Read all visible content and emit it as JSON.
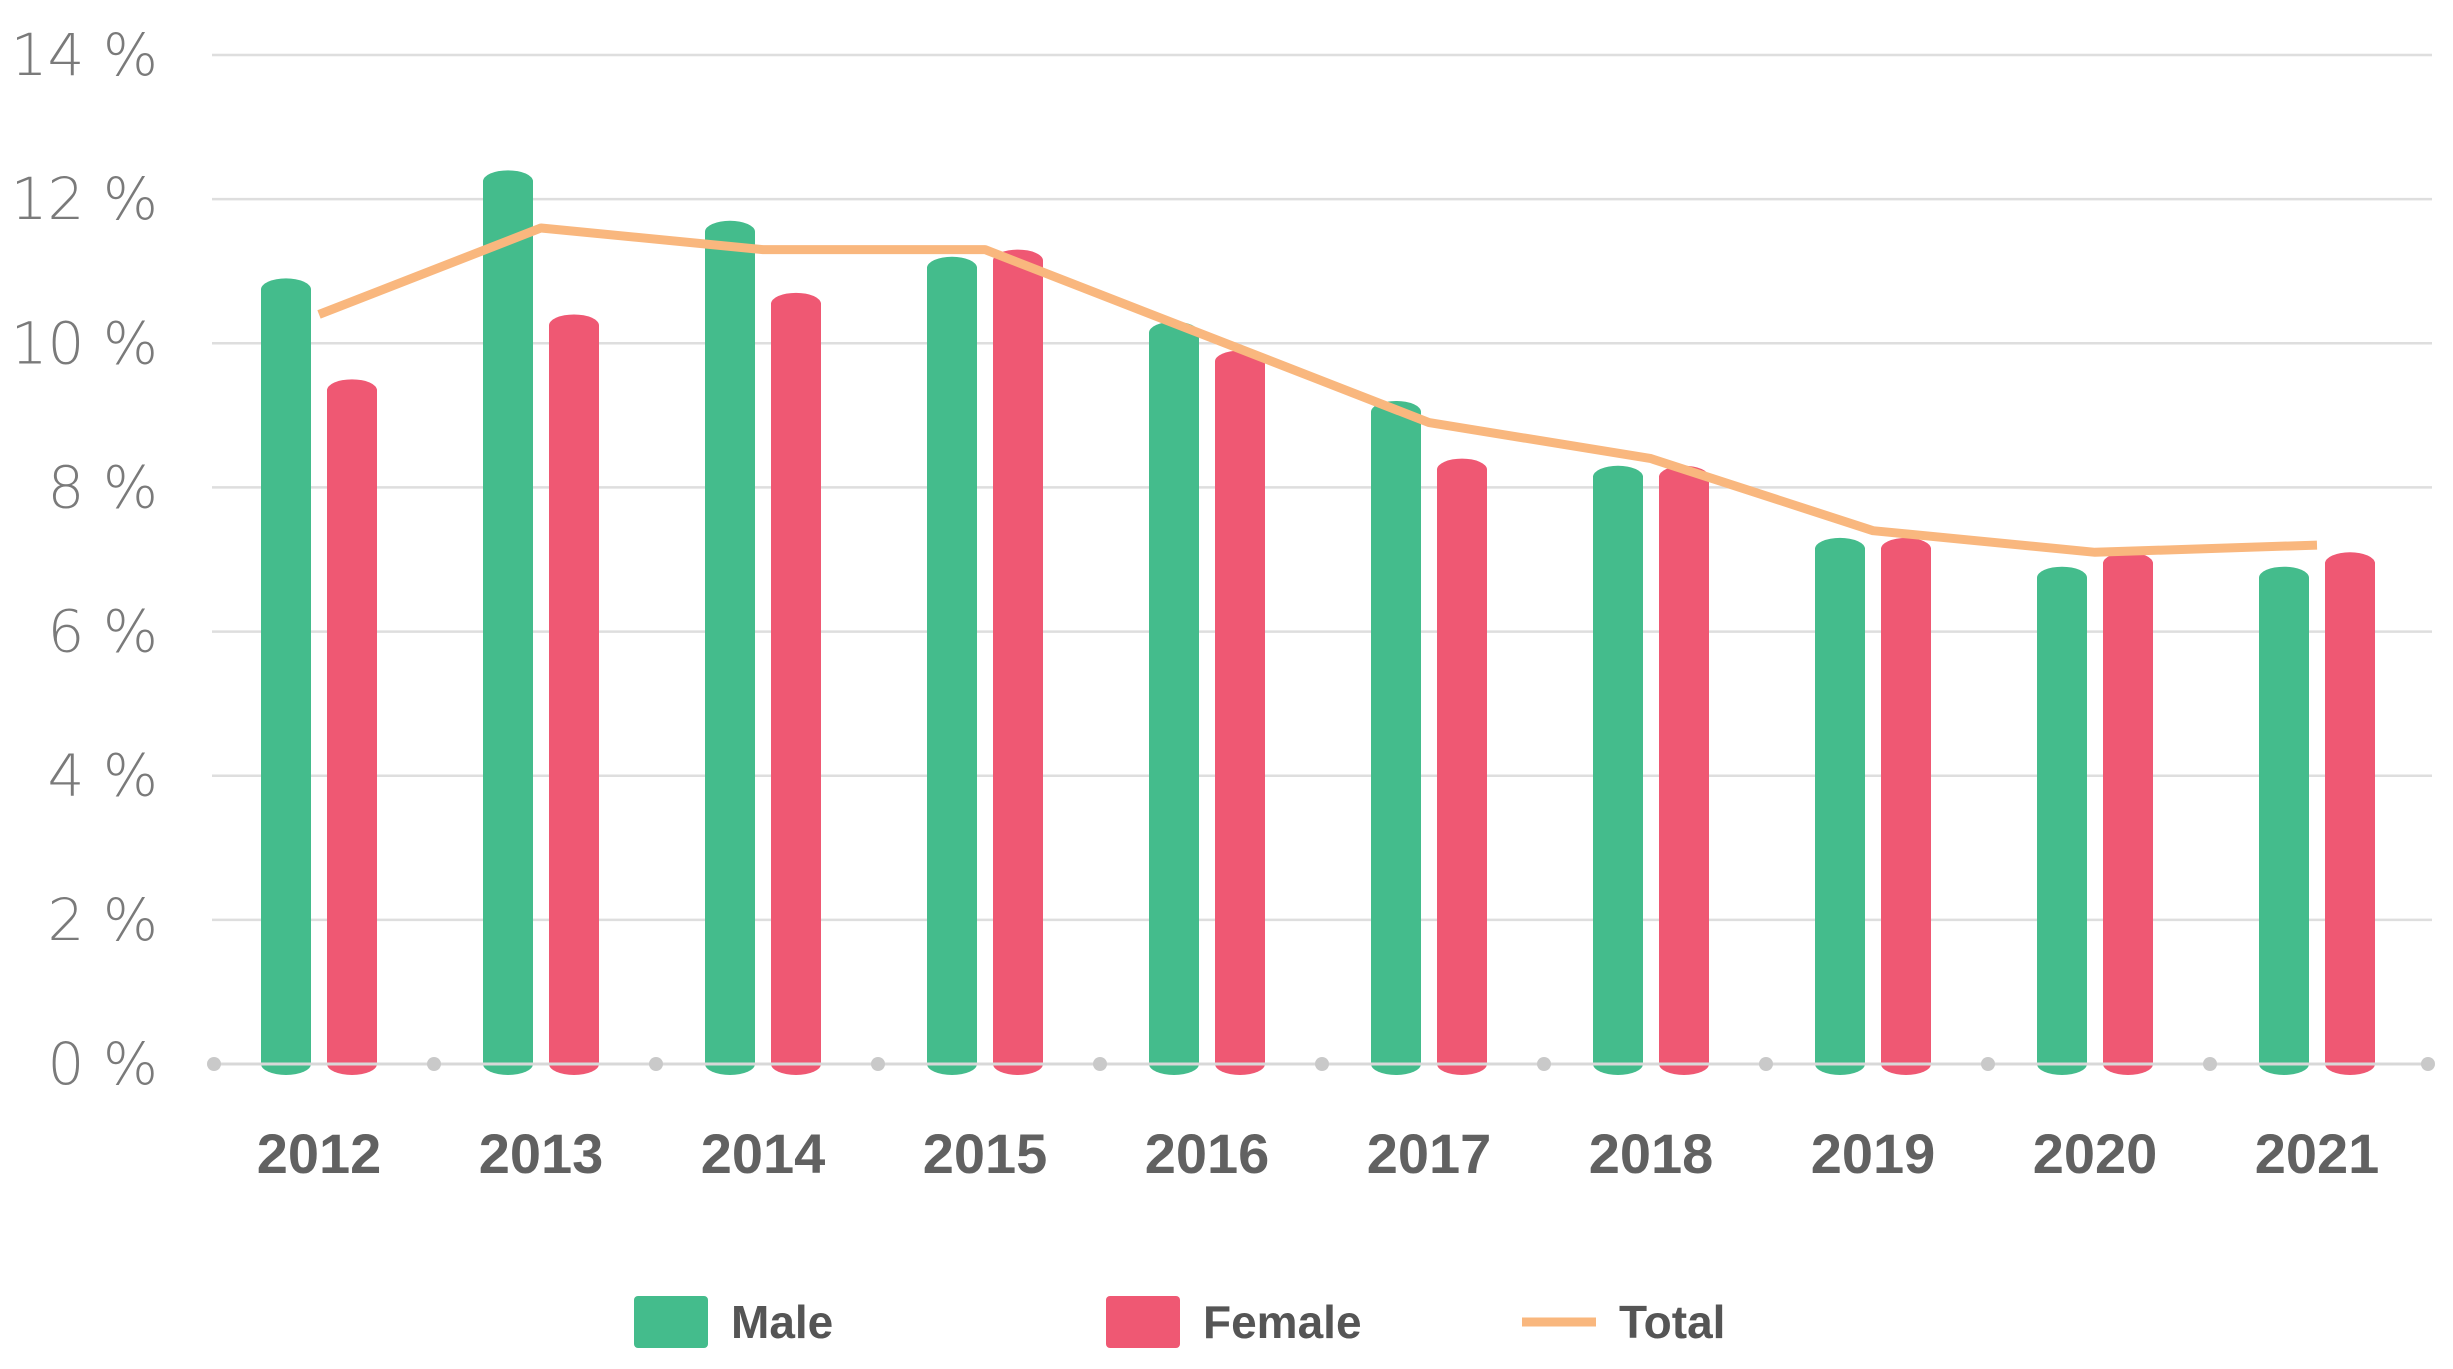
{
  "chart_data": {
    "type": "bar",
    "categories": [
      "2012",
      "2013",
      "2014",
      "2015",
      "2016",
      "2017",
      "2018",
      "2019",
      "2020",
      "2021"
    ],
    "series": [
      {
        "name": "Male",
        "kind": "bar",
        "color": "#44bc8c",
        "values": [
          10.9,
          12.4,
          11.7,
          11.2,
          10.3,
          9.2,
          8.3,
          7.3,
          6.9,
          6.9
        ]
      },
      {
        "name": "Female",
        "kind": "bar",
        "color": "#ef5873",
        "values": [
          9.5,
          10.4,
          10.7,
          11.3,
          9.9,
          8.4,
          8.3,
          7.3,
          7.1,
          7.1
        ]
      },
      {
        "name": "Total",
        "kind": "line",
        "color": "#f9b77e",
        "values": [
          10.4,
          11.6,
          11.3,
          11.3,
          10.1,
          8.9,
          8.4,
          7.4,
          7.1,
          7.2
        ]
      }
    ],
    "y_ticks": [
      "0 %",
      "2 %",
      "4 %",
      "6 %",
      "8 %",
      "10 %",
      "12 %",
      "14 %"
    ],
    "ylim": [
      0,
      14
    ],
    "grid": true,
    "legend_position": "bottom-center"
  }
}
